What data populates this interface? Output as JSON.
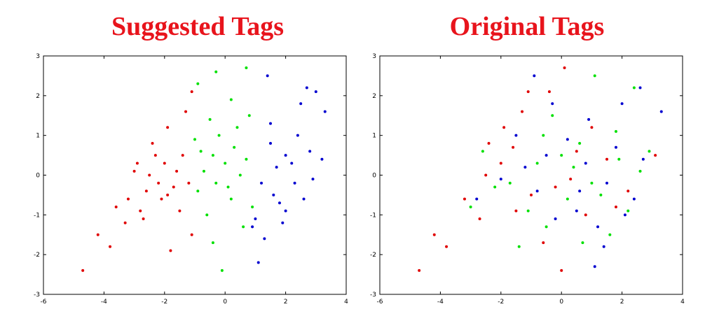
{
  "chart_data": [
    {
      "type": "scatter",
      "title": "Suggested Tags",
      "xlim": [
        -6,
        4
      ],
      "ylim": [
        -3,
        3
      ],
      "x_ticks": [
        "-6",
        "-4",
        "-2",
        "0",
        "2",
        "4"
      ],
      "y_ticks": [
        "3",
        "2",
        "1",
        "0",
        "-1",
        "-2",
        "-3"
      ],
      "grid": false,
      "colors": {
        "red": "#e00000",
        "green": "#00e000",
        "blue": "#0000d0"
      },
      "series": [
        {
          "color": "#e00000",
          "points": [
            [
              -4.7,
              -2.4
            ],
            [
              -3.8,
              -1.8
            ],
            [
              -4.2,
              -1.5
            ],
            [
              -3.6,
              -0.8
            ],
            [
              -3.2,
              -0.6
            ],
            [
              -2.6,
              -0.4
            ],
            [
              -2.9,
              0.3
            ],
            [
              -2.4,
              0.8
            ],
            [
              -2.0,
              0.3
            ],
            [
              -1.6,
              0.1
            ],
            [
              -1.9,
              1.2
            ],
            [
              -1.3,
              1.6
            ],
            [
              -1.1,
              2.1
            ],
            [
              -2.2,
              -0.2
            ],
            [
              -2.7,
              -1.1
            ],
            [
              -1.5,
              -0.9
            ],
            [
              -1.8,
              -1.9
            ],
            [
              -1.1,
              -1.5
            ],
            [
              -3.3,
              -1.2
            ],
            [
              -2.1,
              -0.6
            ],
            [
              -1.4,
              0.5
            ],
            [
              -2.5,
              0.0
            ],
            [
              -1.7,
              -0.3
            ],
            [
              -3.0,
              0.1
            ],
            [
              -2.3,
              0.5
            ],
            [
              -1.2,
              -0.2
            ],
            [
              -2.8,
              -0.9
            ],
            [
              -1.9,
              -0.5
            ]
          ]
        },
        {
          "color": "#00e000",
          "points": [
            [
              -0.3,
              2.6
            ],
            [
              0.7,
              2.7
            ],
            [
              -0.9,
              2.3
            ],
            [
              0.2,
              1.9
            ],
            [
              -0.5,
              1.4
            ],
            [
              0.4,
              1.2
            ],
            [
              -0.8,
              0.6
            ],
            [
              0.0,
              0.3
            ],
            [
              0.5,
              0.0
            ],
            [
              -0.3,
              -0.2
            ],
            [
              -0.9,
              -0.4
            ],
            [
              0.2,
              -0.6
            ],
            [
              -0.6,
              -1.0
            ],
            [
              0.6,
              -1.3
            ],
            [
              -0.4,
              -1.7
            ],
            [
              -0.1,
              -2.4
            ],
            [
              0.9,
              -0.8
            ],
            [
              -1.0,
              0.9
            ],
            [
              0.3,
              0.7
            ],
            [
              0.7,
              0.4
            ],
            [
              -0.7,
              0.1
            ],
            [
              0.1,
              -0.3
            ],
            [
              -0.2,
              1.0
            ],
            [
              0.8,
              1.5
            ],
            [
              -0.4,
              0.5
            ]
          ]
        },
        {
          "color": "#0000d0",
          "points": [
            [
              1.4,
              2.5
            ],
            [
              2.7,
              2.2
            ],
            [
              3.0,
              2.1
            ],
            [
              3.3,
              1.6
            ],
            [
              2.5,
              1.8
            ],
            [
              1.5,
              1.3
            ],
            [
              2.4,
              1.0
            ],
            [
              2.0,
              0.5
            ],
            [
              1.7,
              0.2
            ],
            [
              2.8,
              0.6
            ],
            [
              3.2,
              0.4
            ],
            [
              2.3,
              -0.2
            ],
            [
              1.6,
              -0.5
            ],
            [
              2.0,
              -0.9
            ],
            [
              1.0,
              -1.1
            ],
            [
              1.3,
              -1.6
            ],
            [
              1.1,
              -2.2
            ],
            [
              0.9,
              -1.3
            ],
            [
              2.6,
              -0.6
            ],
            [
              1.9,
              -1.2
            ],
            [
              1.2,
              -0.2
            ],
            [
              2.2,
              0.3
            ],
            [
              1.5,
              0.8
            ],
            [
              2.9,
              -0.1
            ],
            [
              1.8,
              -0.7
            ]
          ]
        }
      ]
    },
    {
      "type": "scatter",
      "title": "Original Tags",
      "xlim": [
        -6,
        4
      ],
      "ylim": [
        -3,
        3
      ],
      "x_ticks": [
        "-6",
        "-4",
        "-2",
        "0",
        "2",
        "4"
      ],
      "y_ticks": [
        "3",
        "2",
        "1",
        "0",
        "-1",
        "-2",
        "-3"
      ],
      "grid": false,
      "colors": {
        "red": "#e00000",
        "green": "#00e000",
        "blue": "#0000d0"
      },
      "series": [
        {
          "color": "#e00000",
          "points": [
            [
              -4.7,
              -2.4
            ],
            [
              -3.8,
              -1.8
            ],
            [
              -4.2,
              -1.5
            ],
            [
              -3.2,
              -0.6
            ],
            [
              -2.4,
              0.8
            ],
            [
              -1.9,
              1.2
            ],
            [
              -1.3,
              1.6
            ],
            [
              -1.1,
              2.1
            ],
            [
              -0.4,
              2.1
            ],
            [
              0.1,
              2.7
            ],
            [
              -2.7,
              -1.1
            ],
            [
              -1.5,
              -0.9
            ],
            [
              -0.6,
              -1.7
            ],
            [
              0.0,
              -2.4
            ],
            [
              0.8,
              -1.0
            ],
            [
              1.5,
              0.4
            ],
            [
              2.2,
              -0.4
            ],
            [
              3.1,
              0.5
            ],
            [
              1.0,
              1.2
            ],
            [
              -0.2,
              -0.3
            ],
            [
              -2.0,
              0.3
            ],
            [
              0.5,
              0.6
            ],
            [
              -1.0,
              -0.5
            ],
            [
              1.8,
              -0.8
            ],
            [
              -2.5,
              0.0
            ],
            [
              0.3,
              -0.1
            ],
            [
              -1.6,
              0.7
            ]
          ]
        },
        {
          "color": "#00e000",
          "points": [
            [
              -1.4,
              -1.8
            ],
            [
              -0.5,
              -1.3
            ],
            [
              1.1,
              2.5
            ],
            [
              2.4,
              2.2
            ],
            [
              1.8,
              1.1
            ],
            [
              0.6,
              0.8
            ],
            [
              -0.8,
              0.3
            ],
            [
              0.2,
              -0.6
            ],
            [
              1.3,
              -0.5
            ],
            [
              2.6,
              0.1
            ],
            [
              -2.2,
              -0.3
            ],
            [
              -3.0,
              -0.8
            ],
            [
              0.7,
              -1.7
            ],
            [
              1.6,
              -1.5
            ],
            [
              -0.3,
              1.5
            ],
            [
              2.9,
              0.6
            ],
            [
              -1.1,
              -0.9
            ],
            [
              0.4,
              0.2
            ],
            [
              -2.6,
              0.6
            ],
            [
              1.9,
              0.4
            ],
            [
              -0.6,
              1.0
            ],
            [
              1.0,
              -0.2
            ],
            [
              -1.7,
              -0.2
            ],
            [
              2.2,
              -0.9
            ],
            [
              0.0,
              0.5
            ]
          ]
        },
        {
          "color": "#0000d0",
          "points": [
            [
              -0.9,
              2.5
            ],
            [
              2.6,
              2.2
            ],
            [
              3.3,
              1.6
            ],
            [
              2.0,
              1.8
            ],
            [
              0.9,
              1.4
            ],
            [
              -0.3,
              1.8
            ],
            [
              -1.5,
              1.0
            ],
            [
              -0.5,
              0.5
            ],
            [
              0.8,
              0.3
            ],
            [
              1.5,
              -0.2
            ],
            [
              2.4,
              -0.6
            ],
            [
              1.2,
              -1.3
            ],
            [
              0.5,
              -0.9
            ],
            [
              -0.8,
              -0.4
            ],
            [
              -2.0,
              -0.1
            ],
            [
              -2.8,
              -0.6
            ],
            [
              1.1,
              -2.3
            ],
            [
              1.4,
              -1.8
            ],
            [
              2.7,
              0.4
            ],
            [
              -1.2,
              0.2
            ],
            [
              0.2,
              0.9
            ],
            [
              1.8,
              0.7
            ],
            [
              -0.2,
              -1.1
            ],
            [
              0.6,
              -0.4
            ],
            [
              2.1,
              -1.0
            ]
          ]
        }
      ]
    }
  ]
}
